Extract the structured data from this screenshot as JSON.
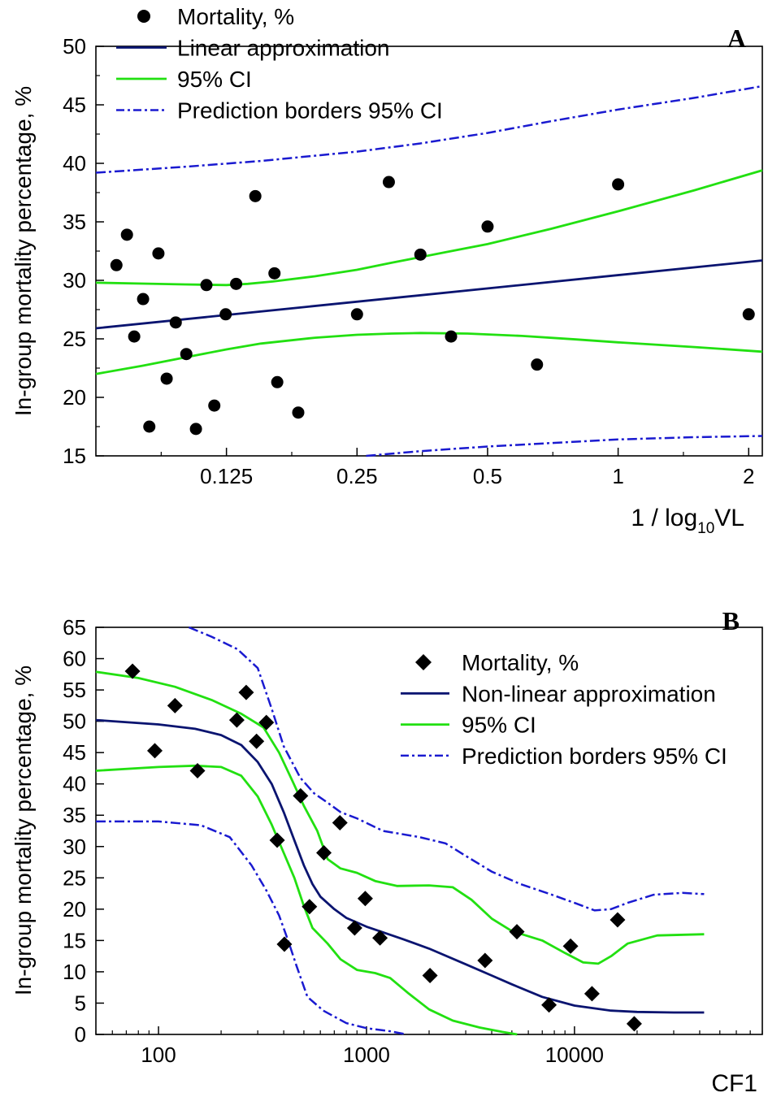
{
  "colors": {
    "fit": "#0a1470",
    "ci": "#22e011",
    "pred": "#1a1ad0",
    "point": "#000000"
  },
  "chart_data": [
    {
      "panel": "A",
      "type": "scatter",
      "xscale": "log2",
      "xlabel_main": "1 / log",
      "xlabel_sub": "10",
      "xlabel_tail": "VL",
      "ylabel": "In-group mortality percentage, %",
      "xlim": [
        0.0625,
        2.15
      ],
      "ylim": [
        15,
        50
      ],
      "xticks": [
        0.125,
        0.25,
        0.5,
        1,
        2
      ],
      "xtick_labels": [
        "0.125",
        "0.25",
        "0.5",
        "1",
        "2"
      ],
      "yticks": [
        15,
        20,
        25,
        30,
        35,
        40,
        45,
        50
      ],
      "legend": {
        "position": "top-left",
        "entries": [
          "Mortality, %",
          "Linear approximation",
          "95% CI",
          "Prediction borders 95% CI"
        ]
      },
      "points": [
        [
          0.0697,
          31.3
        ],
        [
          0.0737,
          33.9
        ],
        [
          0.0766,
          25.2
        ],
        [
          0.0803,
          28.4
        ],
        [
          0.083,
          17.5
        ],
        [
          0.0871,
          32.3
        ],
        [
          0.091,
          21.6
        ],
        [
          0.0955,
          26.4
        ],
        [
          0.101,
          23.7
        ],
        [
          0.1063,
          17.3
        ],
        [
          0.1124,
          29.6
        ],
        [
          0.1172,
          19.3
        ],
        [
          0.1245,
          27.1
        ],
        [
          0.1316,
          29.7
        ],
        [
          0.1457,
          37.2
        ],
        [
          0.1613,
          30.6
        ],
        [
          0.1637,
          21.3
        ],
        [
          0.183,
          18.7
        ],
        [
          0.25,
          27.1
        ],
        [
          0.296,
          38.4
        ],
        [
          0.35,
          32.2
        ],
        [
          0.4119,
          25.2
        ],
        [
          0.5,
          34.6
        ],
        [
          0.65,
          22.8
        ],
        [
          1.0,
          38.2
        ],
        [
          2.0,
          27.1
        ]
      ],
      "fit": [
        [
          0.0625,
          25.9
        ],
        [
          2.15,
          31.7
        ]
      ],
      "ci_upper": [
        [
          0.0625,
          29.8
        ],
        [
          0.08,
          29.72
        ],
        [
          0.1,
          29.65
        ],
        [
          0.125,
          29.6
        ],
        [
          0.14,
          29.7
        ],
        [
          0.16,
          29.9
        ],
        [
          0.2,
          30.35
        ],
        [
          0.25,
          30.9
        ],
        [
          0.3,
          31.5
        ],
        [
          0.4,
          32.4
        ],
        [
          0.5,
          33.1
        ],
        [
          0.7,
          34.4
        ],
        [
          1.0,
          35.9
        ],
        [
          1.5,
          37.7
        ],
        [
          2.15,
          39.4
        ]
      ],
      "ci_lower": [
        [
          0.0625,
          22.0
        ],
        [
          0.08,
          22.7
        ],
        [
          0.1,
          23.4
        ],
        [
          0.125,
          24.1
        ],
        [
          0.15,
          24.6
        ],
        [
          0.2,
          25.1
        ],
        [
          0.25,
          25.35
        ],
        [
          0.3,
          25.45
        ],
        [
          0.35,
          25.5
        ],
        [
          0.45,
          25.45
        ],
        [
          0.6,
          25.25
        ],
        [
          0.8,
          24.95
        ],
        [
          1.0,
          24.7
        ],
        [
          1.5,
          24.3
        ],
        [
          2.15,
          23.9
        ]
      ],
      "pred_upper": [
        [
          0.0625,
          39.2
        ],
        [
          0.1,
          39.7
        ],
        [
          0.15,
          40.2
        ],
        [
          0.25,
          41.0
        ],
        [
          0.35,
          41.7
        ],
        [
          0.5,
          42.6
        ],
        [
          0.7,
          43.6
        ],
        [
          1.0,
          44.6
        ],
        [
          1.5,
          45.6
        ],
        [
          2.15,
          46.6
        ]
      ],
      "pred_lower": [
        [
          0.2624,
          15.0
        ],
        [
          0.35,
          15.4
        ],
        [
          0.5,
          15.8
        ],
        [
          0.7,
          16.1
        ],
        [
          1.0,
          16.4
        ],
        [
          1.5,
          16.6
        ],
        [
          2.15,
          16.7
        ]
      ]
    },
    {
      "panel": "B",
      "type": "scatter",
      "xscale": "log10",
      "xlabel": "CF1",
      "ylabel": "In-group mortality percentage, %",
      "xlim": [
        50,
        80000
      ],
      "ylim": [
        0,
        65
      ],
      "xticks": [
        100,
        1000,
        10000
      ],
      "xtick_labels": [
        "100",
        "1000",
        "10000"
      ],
      "yticks": [
        0,
        5,
        10,
        15,
        20,
        25,
        30,
        35,
        40,
        45,
        50,
        55,
        60,
        65
      ],
      "legend": {
        "position": "top-right",
        "entries": [
          "Mortality, %",
          "Non-linear approximation",
          "95% CI",
          "Prediction borders 95% CI"
        ]
      },
      "points": [
        [
          75,
          58.0
        ],
        [
          96,
          45.3
        ],
        [
          120,
          52.5
        ],
        [
          154,
          42.1
        ],
        [
          238,
          50.2
        ],
        [
          264,
          54.6
        ],
        [
          296,
          46.8
        ],
        [
          330,
          49.8
        ],
        [
          372,
          31.0
        ],
        [
          403,
          14.4
        ],
        [
          482,
          38.1
        ],
        [
          532,
          20.4
        ],
        [
          624,
          29.0
        ],
        [
          745,
          33.8
        ],
        [
          877,
          17.0
        ],
        [
          986,
          21.7
        ],
        [
          1161,
          15.4
        ],
        [
          2020,
          9.4
        ],
        [
          3716,
          11.8
        ],
        [
          5286,
          16.4
        ],
        [
          7544,
          4.7
        ],
        [
          9575,
          14.1
        ],
        [
          12137,
          6.5
        ],
        [
          16118,
          18.3
        ],
        [
          19378,
          1.7
        ]
      ],
      "fit": [
        [
          50,
          50.2
        ],
        [
          100,
          49.5
        ],
        [
          150,
          48.8
        ],
        [
          200,
          47.8
        ],
        [
          250,
          46.2
        ],
        [
          300,
          43.5
        ],
        [
          350,
          40.0
        ],
        [
          400,
          35.5
        ],
        [
          450,
          31.0
        ],
        [
          500,
          27.0
        ],
        [
          550,
          24.0
        ],
        [
          600,
          22.0
        ],
        [
          700,
          20.0
        ],
        [
          800,
          18.6
        ],
        [
          1000,
          17.2
        ],
        [
          1500,
          15.2
        ],
        [
          2000,
          13.7
        ],
        [
          3000,
          11.2
        ],
        [
          4000,
          9.4
        ],
        [
          5000,
          8.0
        ],
        [
          7000,
          6.0
        ],
        [
          10000,
          4.6
        ],
        [
          15000,
          3.8
        ],
        [
          20000,
          3.6
        ],
        [
          30000,
          3.5
        ],
        [
          42000,
          3.5
        ]
      ],
      "ci_upper": [
        [
          50,
          57.9
        ],
        [
          80,
          56.9
        ],
        [
          120,
          55.5
        ],
        [
          180,
          53.4
        ],
        [
          250,
          51.2
        ],
        [
          320,
          49.0
        ],
        [
          380,
          45.0
        ],
        [
          440,
          40.5
        ],
        [
          500,
          36.5
        ],
        [
          580,
          32.5
        ],
        [
          650,
          28.0
        ],
        [
          750,
          26.5
        ],
        [
          900,
          25.8
        ],
        [
          1100,
          24.5
        ],
        [
          1400,
          23.7
        ],
        [
          2000,
          23.8
        ],
        [
          2600,
          23.5
        ],
        [
          3200,
          21.5
        ],
        [
          4000,
          18.5
        ],
        [
          5000,
          16.5
        ],
        [
          7000,
          15.0
        ],
        [
          9000,
          13.0
        ],
        [
          11000,
          11.5
        ],
        [
          13000,
          11.3
        ],
        [
          15000,
          12.5
        ],
        [
          18000,
          14.5
        ],
        [
          25000,
          15.8
        ],
        [
          42000,
          16.0
        ]
      ],
      "ci_lower": [
        [
          50,
          42.1
        ],
        [
          100,
          42.7
        ],
        [
          150,
          42.9
        ],
        [
          200,
          42.7
        ],
        [
          250,
          41.3
        ],
        [
          300,
          38.0
        ],
        [
          350,
          33.5
        ],
        [
          400,
          29.0
        ],
        [
          450,
          25.0
        ],
        [
          500,
          20.5
        ],
        [
          550,
          17.0
        ],
        [
          650,
          14.5
        ],
        [
          750,
          12.0
        ],
        [
          900,
          10.3
        ],
        [
          1100,
          9.8
        ],
        [
          1300,
          9.0
        ],
        [
          1600,
          6.5
        ],
        [
          2000,
          4.0
        ],
        [
          2600,
          2.2
        ],
        [
          3500,
          1.1
        ],
        [
          4500,
          0.4
        ],
        [
          5300,
          0.0
        ]
      ],
      "pred_upper": [
        [
          140,
          65.0
        ],
        [
          180,
          63.5
        ],
        [
          240,
          61.5
        ],
        [
          300,
          58.5
        ],
        [
          350,
          52.0
        ],
        [
          400,
          46.0
        ],
        [
          480,
          41.0
        ],
        [
          560,
          38.5
        ],
        [
          650,
          37.0
        ],
        [
          750,
          35.5
        ],
        [
          900,
          34.5
        ],
        [
          1200,
          32.5
        ],
        [
          1800,
          31.5
        ],
        [
          2400,
          30.5
        ],
        [
          3000,
          28.5
        ],
        [
          4000,
          26.0
        ],
        [
          5500,
          24.0
        ],
        [
          7500,
          22.5
        ],
        [
          10000,
          21.0
        ],
        [
          12500,
          19.8
        ],
        [
          15000,
          20.0
        ],
        [
          18000,
          21.0
        ],
        [
          24000,
          22.3
        ],
        [
          33000,
          22.6
        ],
        [
          42000,
          22.4
        ]
      ],
      "pred_lower": [
        [
          50,
          34.0
        ],
        [
          100,
          34.0
        ],
        [
          160,
          33.4
        ],
        [
          220,
          31.5
        ],
        [
          280,
          27.0
        ],
        [
          330,
          23.0
        ],
        [
          380,
          19.0
        ],
        [
          420,
          15.0
        ],
        [
          460,
          11.0
        ],
        [
          520,
          6.0
        ],
        [
          620,
          3.8
        ],
        [
          800,
          1.8
        ],
        [
          1000,
          1.0
        ],
        [
          1300,
          0.5
        ],
        [
          1560,
          0.0
        ]
      ]
    }
  ]
}
